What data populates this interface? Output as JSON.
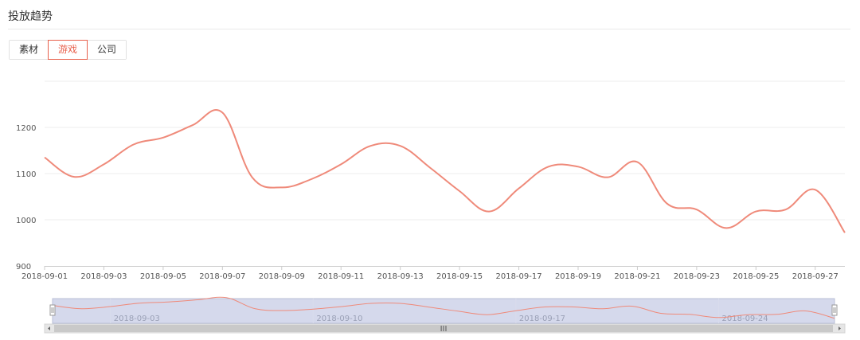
{
  "panel": {
    "title": "投放趋势"
  },
  "tabs": [
    {
      "label": "素材",
      "active": false
    },
    {
      "label": "游戏",
      "active": true
    },
    {
      "label": "公司",
      "active": false
    }
  ],
  "colors": {
    "accent": "#e8604c",
    "line": "#ef8a7a",
    "grid": "#eeeeee",
    "zoom_fill": "#c7cce6",
    "zoom_border": "#b9bfd6"
  },
  "chart_data": {
    "type": "line",
    "title": "",
    "xlabel": "",
    "ylabel": "",
    "ylim": [
      900,
      1300
    ],
    "yticks": [
      900,
      1000,
      1100,
      1200
    ],
    "grid": true,
    "x": [
      "2018-09-01",
      "2018-09-02",
      "2018-09-03",
      "2018-09-04",
      "2018-09-05",
      "2018-09-06",
      "2018-09-07",
      "2018-09-08",
      "2018-09-09",
      "2018-09-10",
      "2018-09-11",
      "2018-09-12",
      "2018-09-13",
      "2018-09-14",
      "2018-09-15",
      "2018-09-16",
      "2018-09-17",
      "2018-09-18",
      "2018-09-19",
      "2018-09-20",
      "2018-09-21",
      "2018-09-22",
      "2018-09-23",
      "2018-09-24",
      "2018-09-25",
      "2018-09-26",
      "2018-09-27",
      "2018-09-28"
    ],
    "xtick_labels": [
      "2018-09-01",
      "2018-09-03",
      "2018-09-05",
      "2018-09-07",
      "2018-09-09",
      "2018-09-11",
      "2018-09-13",
      "2018-09-15",
      "2018-09-17",
      "2018-09-19",
      "2018-09-21",
      "2018-09-23",
      "2018-09-25",
      "2018-09-27"
    ],
    "series": [
      {
        "values": [
          1135,
          1093,
          1120,
          1163,
          1178,
          1205,
          1232,
          1092,
          1070,
          1088,
          1120,
          1160,
          1160,
          1113,
          1062,
          1018,
          1068,
          1115,
          1115,
          1092,
          1125,
          1035,
          1022,
          982,
          1018,
          1022,
          1065,
          972
        ]
      }
    ]
  },
  "data_zoom": {
    "labels": [
      "2018-09-03",
      "2018-09-10",
      "2018-09-17",
      "2018-09-24"
    ],
    "handle_glyph": "III"
  }
}
